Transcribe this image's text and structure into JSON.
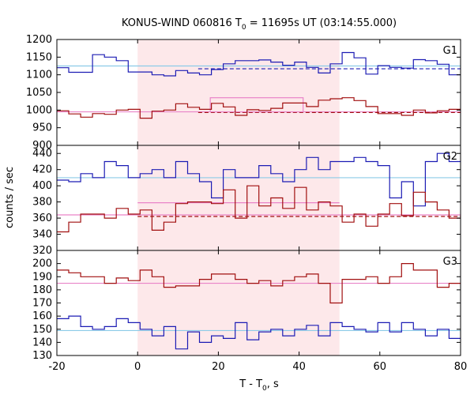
{
  "chart_data": {
    "type": "step",
    "title_parts": {
      "prefix": "KONUS-WIND 060816 T",
      "sub": "0",
      "suffix": " = 11695s UT (03:14:55.000)"
    },
    "xlabel_parts": {
      "prefix": "T - T",
      "sub": "0",
      "suffix": ", s"
    },
    "ylabel": "counts / sec",
    "xlim": [
      -20,
      80
    ],
    "xticks": [
      -20,
      0,
      20,
      40,
      60,
      80
    ],
    "shaded_interval": [
      0,
      50
    ],
    "colors": {
      "blue": "#1c1cb4",
      "red": "#a10f0f",
      "cyan": "#8ccbe8",
      "pink": "#e984c8",
      "shade": "#fde8ea"
    },
    "panels": [
      {
        "label": "G1",
        "ylim": [
          900,
          1200
        ],
        "yticks": [
          900,
          950,
          1000,
          1050,
          1100,
          1150,
          1200
        ],
        "series": [
          {
            "color": "blue",
            "x0": -20,
            "dx": 2.944,
            "values": [
              1120,
              1107,
              1107,
              1157,
              1150,
              1140,
              1108,
              1108,
              1100,
              1097,
              1112,
              1105,
              1100,
              1115,
              1131,
              1140,
              1140,
              1142,
              1136,
              1127,
              1136,
              1121,
              1105,
              1131,
              1163,
              1148,
              1102,
              1126,
              1121,
              1119,
              1143,
              1140,
              1130,
              1100,
              1154,
              1100,
              1100,
              1148,
              1116,
              1141,
              1095,
              1150,
              1121,
              1128
            ]
          },
          {
            "color": "red",
            "x0": -20,
            "dx": 2.944,
            "values": [
              998,
              989,
              980,
              990,
              988,
              1000,
              1002,
              977,
              997,
              1000,
              1018,
              1008,
              1002,
              1019,
              1009,
              985,
              1001,
              999,
              1005,
              1020,
              1020,
              1010,
              1028,
              1032,
              1035,
              1027,
              1010,
              990,
              990,
              985,
              1000,
              992,
              998,
              1002,
              990,
              1010,
              1030,
              1003,
              985,
              990,
              998,
              1020,
              1003,
              998
            ]
          }
        ],
        "levels": [
          {
            "color": "cyan",
            "dash": false,
            "x1": -20,
            "x2": 80,
            "y": 1125
          },
          {
            "color": "blue",
            "dash": true,
            "x1": 15,
            "x2": 80,
            "y": 1117
          },
          {
            "color": "pink",
            "dash": false,
            "x1": -20,
            "x2": 80,
            "y": 995
          },
          {
            "color": "red",
            "dash": true,
            "x1": 15,
            "x2": 80,
            "y": 993
          }
        ],
        "boxes": [
          {
            "color": "pink",
            "x1": 18,
            "x2": 41,
            "y1": 995,
            "y2": 1035
          }
        ]
      },
      {
        "label": "G2",
        "ylim": [
          320,
          450
        ],
        "yticks": [
          320,
          340,
          360,
          380,
          400,
          420,
          440
        ],
        "series": [
          {
            "color": "blue",
            "x0": -20,
            "dx": 2.944,
            "values": [
              407,
              405,
              415,
              410,
              430,
              425,
              410,
              415,
              420,
              410,
              430,
              415,
              405,
              385,
              420,
              410,
              410,
              425,
              415,
              405,
              420,
              435,
              420,
              430,
              430,
              435,
              430,
              425,
              385,
              405,
              375,
              430,
              440,
              430,
              410,
              400,
              415,
              425,
              420,
              435,
              390,
              440,
              425,
              435
            ]
          },
          {
            "color": "red",
            "x0": -20,
            "dx": 2.944,
            "values": [
              343,
              355,
              365,
              365,
              360,
              372,
              365,
              370,
              345,
              355,
              378,
              380,
              380,
              378,
              395,
              360,
              400,
              375,
              385,
              372,
              398,
              370,
              380,
              375,
              355,
              365,
              350,
              365,
              378,
              363,
              392,
              380,
              370,
              360,
              372,
              360,
              370,
              345,
              375,
              360,
              352,
              380,
              368,
              372
            ]
          }
        ],
        "levels": [
          {
            "color": "cyan",
            "dash": false,
            "x1": -20,
            "x2": 80,
            "y": 410
          },
          {
            "color": "pink",
            "dash": false,
            "x1": 0,
            "x2": 50,
            "y": 379
          },
          {
            "color": "pink",
            "dash": false,
            "x1": -20,
            "x2": 80,
            "y": 364
          },
          {
            "color": "red",
            "dash": true,
            "x1": 0,
            "x2": 80,
            "y": 362
          }
        ],
        "boxes": []
      },
      {
        "label": "G3",
        "ylim": [
          130,
          210
        ],
        "yticks": [
          130,
          140,
          150,
          160,
          170,
          180,
          190,
          200
        ],
        "series": [
          {
            "color": "red",
            "x0": -20,
            "dx": 2.944,
            "values": [
              195,
              193,
              190,
              190,
              185,
              189,
              187,
              195,
              190,
              182,
              183,
              183,
              188,
              192,
              192,
              188,
              185,
              187,
              183,
              187,
              190,
              192,
              185,
              170,
              188,
              188,
              190,
              185,
              190,
              200,
              195,
              195,
              182,
              185,
              186,
              200,
              192,
              190,
              190,
              178,
              185,
              178,
              193,
              185
            ]
          },
          {
            "color": "blue",
            "x0": -20,
            "dx": 2.944,
            "values": [
              158,
              160,
              152,
              150,
              152,
              158,
              155,
              150,
              145,
              152,
              135,
              148,
              140,
              145,
              143,
              155,
              142,
              148,
              150,
              145,
              150,
              153,
              145,
              155,
              152,
              150,
              148,
              155,
              148,
              155,
              150,
              145,
              150,
              143,
              145,
              155,
              148,
              140,
              150,
              143,
              150,
              148,
              150,
              145
            ]
          }
        ],
        "levels": [
          {
            "color": "pink",
            "dash": false,
            "x1": -20,
            "x2": 80,
            "y": 185
          },
          {
            "color": "cyan",
            "dash": false,
            "x1": -20,
            "x2": 80,
            "y": 149
          }
        ],
        "boxes": []
      }
    ]
  }
}
